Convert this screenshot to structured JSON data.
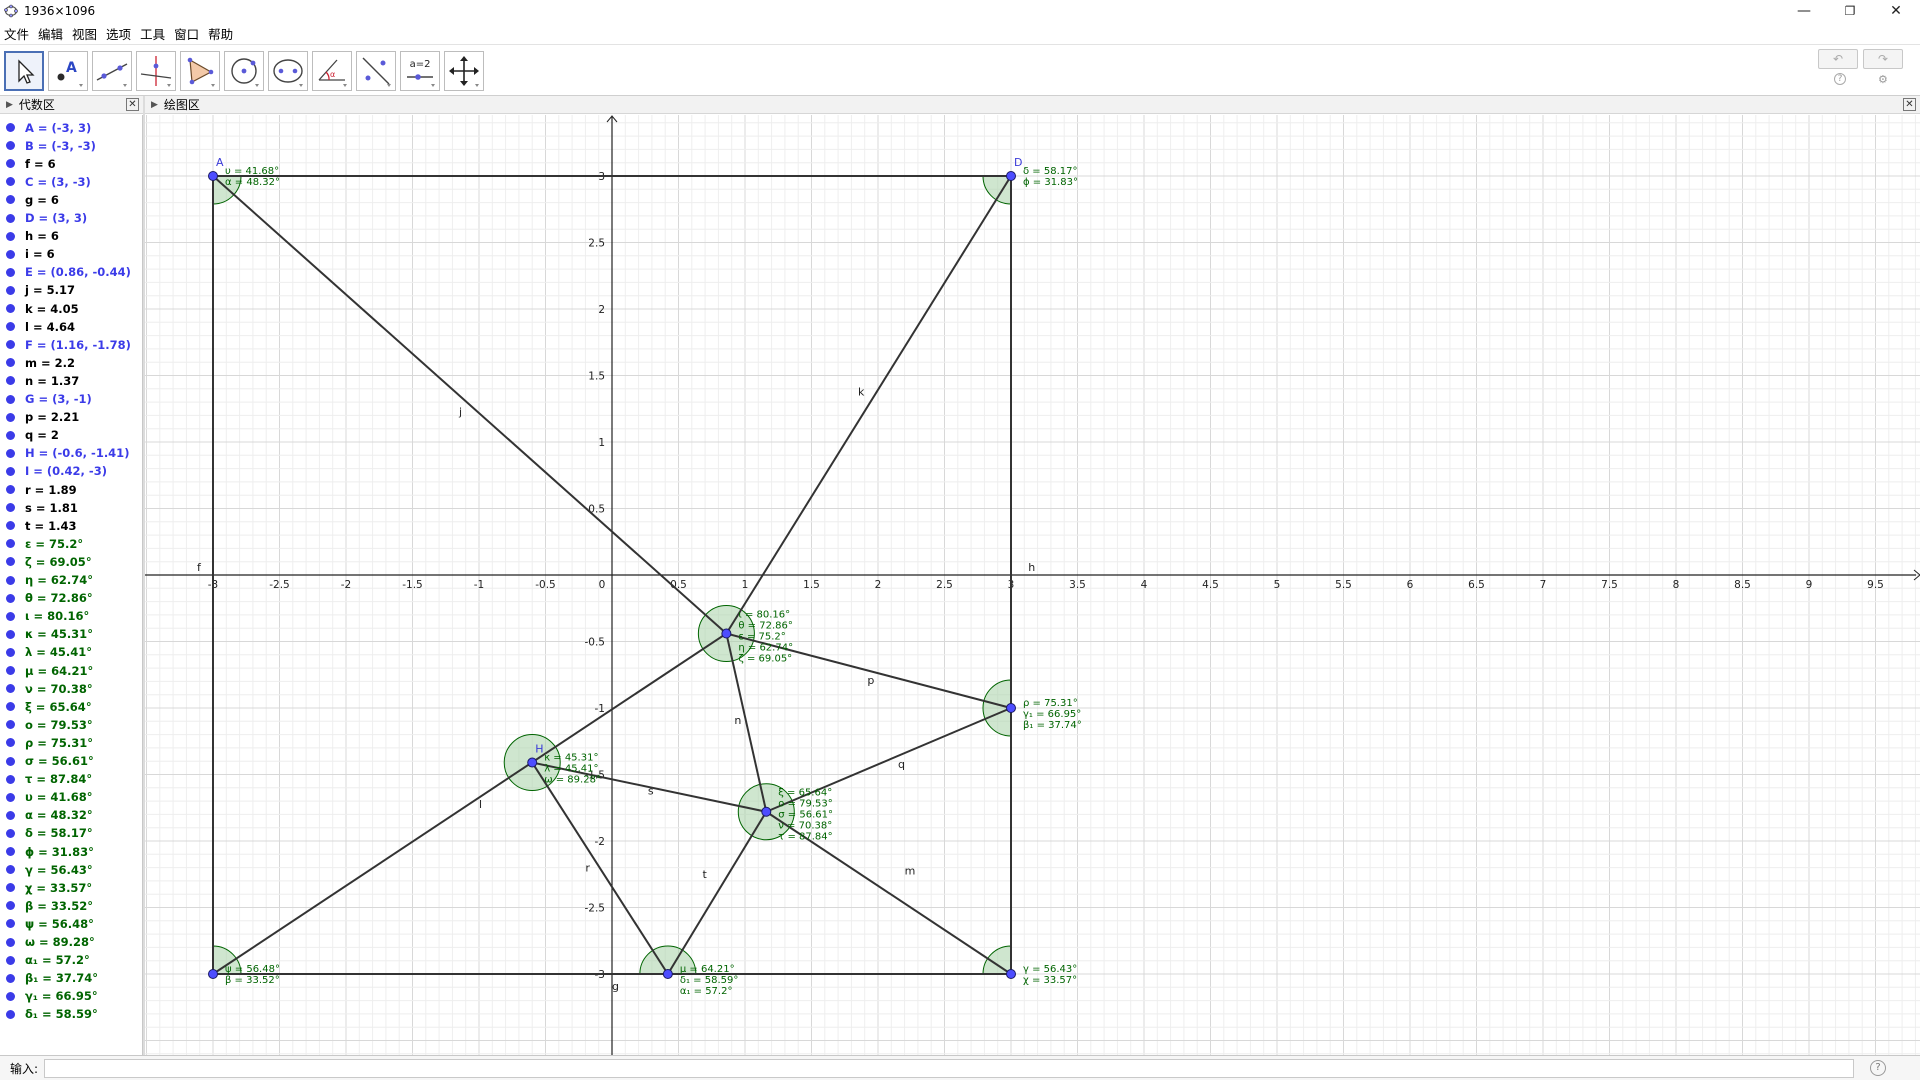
{
  "window": {
    "title": "1936×1096",
    "minimize": "—",
    "restore": "❐",
    "close": "✕"
  },
  "menu": [
    "文件",
    "编辑",
    "视图",
    "选项",
    "工具",
    "窗口",
    "帮助"
  ],
  "toolbar": {
    "tools": [
      "move-tool",
      "point-tool",
      "line-tool",
      "perpendicular-tool",
      "polygon-tool",
      "circle-tool",
      "ellipse-tool",
      "angle-tool",
      "reflect-tool",
      "slider-tool",
      "move-view-tool"
    ],
    "slider_tool_label": "a=2",
    "undo": "↶",
    "redo": "↷",
    "help": "?",
    "settings": "⚙"
  },
  "algebra_panel": {
    "title": "代数区",
    "items": [
      {
        "text": "A = (-3, 3)",
        "type": "point"
      },
      {
        "text": "B = (-3, -3)",
        "type": "point"
      },
      {
        "text": "f = 6",
        "type": "number"
      },
      {
        "text": "C = (3, -3)",
        "type": "point"
      },
      {
        "text": "g = 6",
        "type": "number"
      },
      {
        "text": "D = (3, 3)",
        "type": "point"
      },
      {
        "text": "h = 6",
        "type": "number"
      },
      {
        "text": "i = 6",
        "type": "number"
      },
      {
        "text": "E = (0.86, -0.44)",
        "type": "point"
      },
      {
        "text": "j = 5.17",
        "type": "number"
      },
      {
        "text": "k = 4.05",
        "type": "number"
      },
      {
        "text": "l = 4.64",
        "type": "number"
      },
      {
        "text": "F = (1.16, -1.78)",
        "type": "point"
      },
      {
        "text": "m = 2.2",
        "type": "number"
      },
      {
        "text": "n = 1.37",
        "type": "number"
      },
      {
        "text": "G = (3, -1)",
        "type": "point"
      },
      {
        "text": "p = 2.21",
        "type": "number"
      },
      {
        "text": "q = 2",
        "type": "number"
      },
      {
        "text": "H = (-0.6, -1.41)",
        "type": "point"
      },
      {
        "text": "I = (0.42, -3)",
        "type": "point"
      },
      {
        "text": "r = 1.89",
        "type": "number"
      },
      {
        "text": "s = 1.81",
        "type": "number"
      },
      {
        "text": "t = 1.43",
        "type": "number"
      },
      {
        "text": "ε = 75.2°",
        "type": "angle"
      },
      {
        "text": "ζ = 69.05°",
        "type": "angle"
      },
      {
        "text": "η = 62.74°",
        "type": "angle"
      },
      {
        "text": "θ = 72.86°",
        "type": "angle"
      },
      {
        "text": "ι = 80.16°",
        "type": "angle"
      },
      {
        "text": "κ = 45.31°",
        "type": "angle"
      },
      {
        "text": "λ = 45.41°",
        "type": "angle"
      },
      {
        "text": "μ = 64.21°",
        "type": "angle"
      },
      {
        "text": "ν = 70.38°",
        "type": "angle"
      },
      {
        "text": "ξ = 65.64°",
        "type": "angle"
      },
      {
        "text": "ο = 79.53°",
        "type": "angle"
      },
      {
        "text": "ρ = 75.31°",
        "type": "angle"
      },
      {
        "text": "σ = 56.61°",
        "type": "angle"
      },
      {
        "text": "τ = 87.84°",
        "type": "angle"
      },
      {
        "text": "υ = 41.68°",
        "type": "angle"
      },
      {
        "text": "α = 48.32°",
        "type": "angle"
      },
      {
        "text": "δ = 58.17°",
        "type": "angle"
      },
      {
        "text": "ϕ = 31.83°",
        "type": "angle"
      },
      {
        "text": "γ = 56.43°",
        "type": "angle"
      },
      {
        "text": "χ = 33.57°",
        "type": "angle"
      },
      {
        "text": "β = 33.52°",
        "type": "angle"
      },
      {
        "text": "ψ = 56.48°",
        "type": "angle"
      },
      {
        "text": "ω = 89.28°",
        "type": "angle"
      },
      {
        "text": "α₁ = 57.2°",
        "type": "angle"
      },
      {
        "text": "β₁ = 37.74°",
        "type": "angle"
      },
      {
        "text": "γ₁ = 66.95°",
        "type": "angle"
      },
      {
        "text": "δ₁ = 58.59°",
        "type": "angle"
      }
    ]
  },
  "graphics_panel": {
    "title": "绘图区",
    "axes": {
      "x_ticks": [
        "-3",
        "-2.5",
        "-2",
        "-1.5",
        "-1",
        "-0.5",
        "0",
        "0.5",
        "1",
        "1.5",
        "2",
        "2.5",
        "3",
        "3.5",
        "4",
        "4.5",
        "5",
        "5.5",
        "6",
        "6.5",
        "7",
        "7.5",
        "8",
        "8.5",
        "9",
        "9.5"
      ],
      "y_ticks": [
        "3",
        "2.5",
        "2",
        "1.5",
        "1",
        "0.5",
        "-0.5",
        "-1",
        "-1.5",
        "-2",
        "-2.5",
        "-3"
      ]
    },
    "points": [
      {
        "name": "A",
        "x": -3,
        "y": 3,
        "show_label": true
      },
      {
        "name": "B",
        "x": -3,
        "y": -3,
        "show_label": false
      },
      {
        "name": "C",
        "x": 3,
        "y": -3,
        "show_label": false
      },
      {
        "name": "D",
        "x": 3,
        "y": 3,
        "show_label": true
      },
      {
        "name": "E",
        "x": 0.86,
        "y": -0.44,
        "show_label": false
      },
      {
        "name": "F",
        "x": 1.16,
        "y": -1.78,
        "show_label": false
      },
      {
        "name": "G",
        "x": 3,
        "y": -1,
        "show_label": false
      },
      {
        "name": "H",
        "x": -0.6,
        "y": -1.41,
        "show_label": true
      },
      {
        "name": "I",
        "x": 0.42,
        "y": -3,
        "show_label": false
      }
    ],
    "segments": [
      {
        "name": "f",
        "from": "A",
        "to": "B"
      },
      {
        "name": "g",
        "from": "B",
        "to": "C"
      },
      {
        "name": "h",
        "from": "C",
        "to": "D"
      },
      {
        "name": "i",
        "from": "D",
        "to": "A"
      },
      {
        "name": "j",
        "from": "A",
        "to": "E"
      },
      {
        "name": "k",
        "from": "D",
        "to": "E"
      },
      {
        "name": "l",
        "from": "B",
        "to": "E"
      },
      {
        "name": "m",
        "from": "C",
        "to": "F"
      },
      {
        "name": "n",
        "from": "E",
        "to": "F"
      },
      {
        "name": "p",
        "from": "E",
        "to": "G"
      },
      {
        "name": "q",
        "from": "G",
        "to": "F"
      },
      {
        "name": "r",
        "from": "H",
        "to": "I"
      },
      {
        "name": "s",
        "from": "H",
        "to": "F"
      },
      {
        "name": "t",
        "from": "I",
        "to": "F"
      }
    ],
    "segment_labels": [
      {
        "name": "j",
        "x": -1.15,
        "y": 1.2
      },
      {
        "name": "k",
        "x": 1.85,
        "y": 1.35
      },
      {
        "name": "l",
        "x": -1.0,
        "y": -1.75
      },
      {
        "name": "m",
        "x": 2.2,
        "y": -2.25
      },
      {
        "name": "n",
        "x": 0.92,
        "y": -1.12
      },
      {
        "name": "p",
        "x": 1.92,
        "y": -0.82
      },
      {
        "name": "q",
        "x": 2.15,
        "y": -1.45
      },
      {
        "name": "r",
        "x": -0.2,
        "y": -2.23
      },
      {
        "name": "s",
        "x": 0.27,
        "y": -1.65
      },
      {
        "name": "t",
        "x": 0.68,
        "y": -2.28
      },
      {
        "name": "f",
        "x": -3.12,
        "y": 0.03
      },
      {
        "name": "h",
        "x": 3.13,
        "y": 0.03
      },
      {
        "name": "g",
        "x": 0.0,
        "y": -3.12
      }
    ],
    "angle_marks": [
      {
        "vertex": "A",
        "labels": [
          "υ = 41.68°",
          "α = 48.32°"
        ],
        "start": 270,
        "end": 360
      },
      {
        "vertex": "D",
        "labels": [
          "δ = 58.17°",
          "ϕ = 31.83°"
        ],
        "start": 180,
        "end": 270
      },
      {
        "vertex": "B",
        "labels": [
          "ψ = 56.48°",
          "β = 33.52°"
        ],
        "start": 0,
        "end": 90
      },
      {
        "vertex": "C",
        "labels": [
          "γ = 56.43°",
          "χ = 33.57°"
        ],
        "start": 90,
        "end": 180
      },
      {
        "vertex": "E",
        "labels": [
          "ι = 80.16°",
          "θ = 72.86°",
          "ε = 75.2°",
          "η = 62.74°",
          "ζ = 69.05°"
        ],
        "start": 0,
        "end": 360
      },
      {
        "vertex": "F",
        "labels": [
          "ξ = 65.64°",
          "ο = 79.53°",
          "σ = 56.61°",
          "ν = 70.38°",
          "τ = 87.84°"
        ],
        "start": 0,
        "end": 360
      },
      {
        "vertex": "G",
        "labels": [
          "ρ = 75.31°",
          "γ₁ = 66.95°",
          "β₁ = 37.74°"
        ],
        "start": 90,
        "end": 270
      },
      {
        "vertex": "H",
        "labels": [
          "κ = 45.31°",
          "λ = 45.41°",
          "ω = 89.28°"
        ],
        "start": 0,
        "end": 360
      },
      {
        "vertex": "I",
        "labels": [
          "μ = 64.21°",
          "δ₁ = 58.59°",
          "α₁ = 57.2°"
        ],
        "start": 0,
        "end": 180
      }
    ]
  },
  "input_bar": {
    "label": "输入:",
    "value": "",
    "help": "?"
  },
  "colors": {
    "point": "#3b3be8",
    "number": "#000000",
    "angle": "#006400",
    "segment": "#333333",
    "angle_fill": "#a8d2a8",
    "grid_minor": "#eeeeee",
    "grid_major": "#d8d8d8"
  }
}
